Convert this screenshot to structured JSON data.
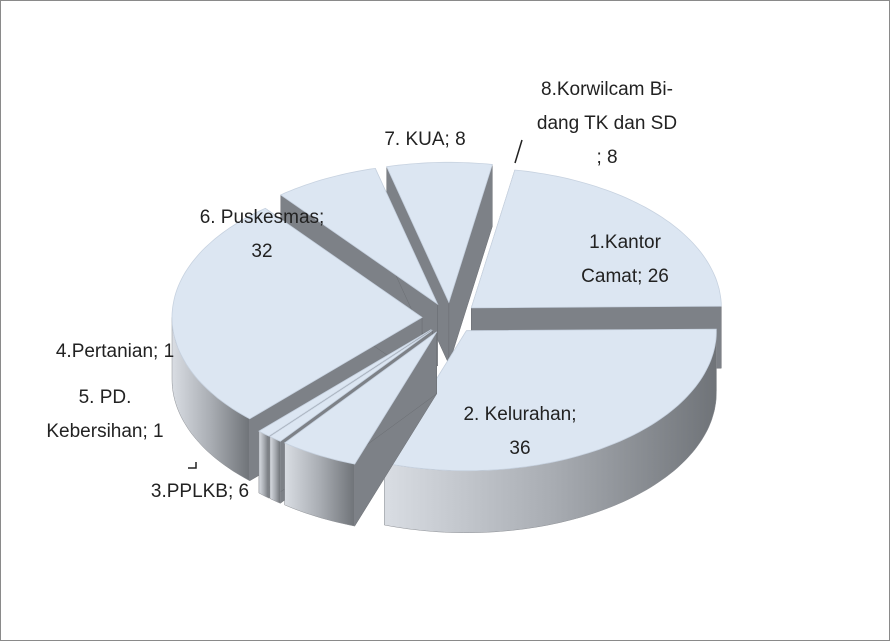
{
  "chart_data": {
    "type": "pie",
    "values": [
      26,
      36,
      6,
      1,
      1,
      32,
      8,
      8
    ],
    "value_labels": [
      [
        "1.Kantor",
        "Camat; 26"
      ],
      [
        "2. Kelurahan;",
        "36"
      ],
      [
        "3.PPLKB; 6"
      ],
      [
        "5. PD.",
        "Kebersihan; 1"
      ],
      [
        "4.Pertanian; 1"
      ],
      [
        "6. Puskesmas;",
        "32"
      ],
      [
        "7. KUA; 8"
      ],
      [
        "8.Korwilcam Bi-",
        "dang TK dan SD",
        "; 8"
      ]
    ],
    "color": "#dce6f2"
  }
}
